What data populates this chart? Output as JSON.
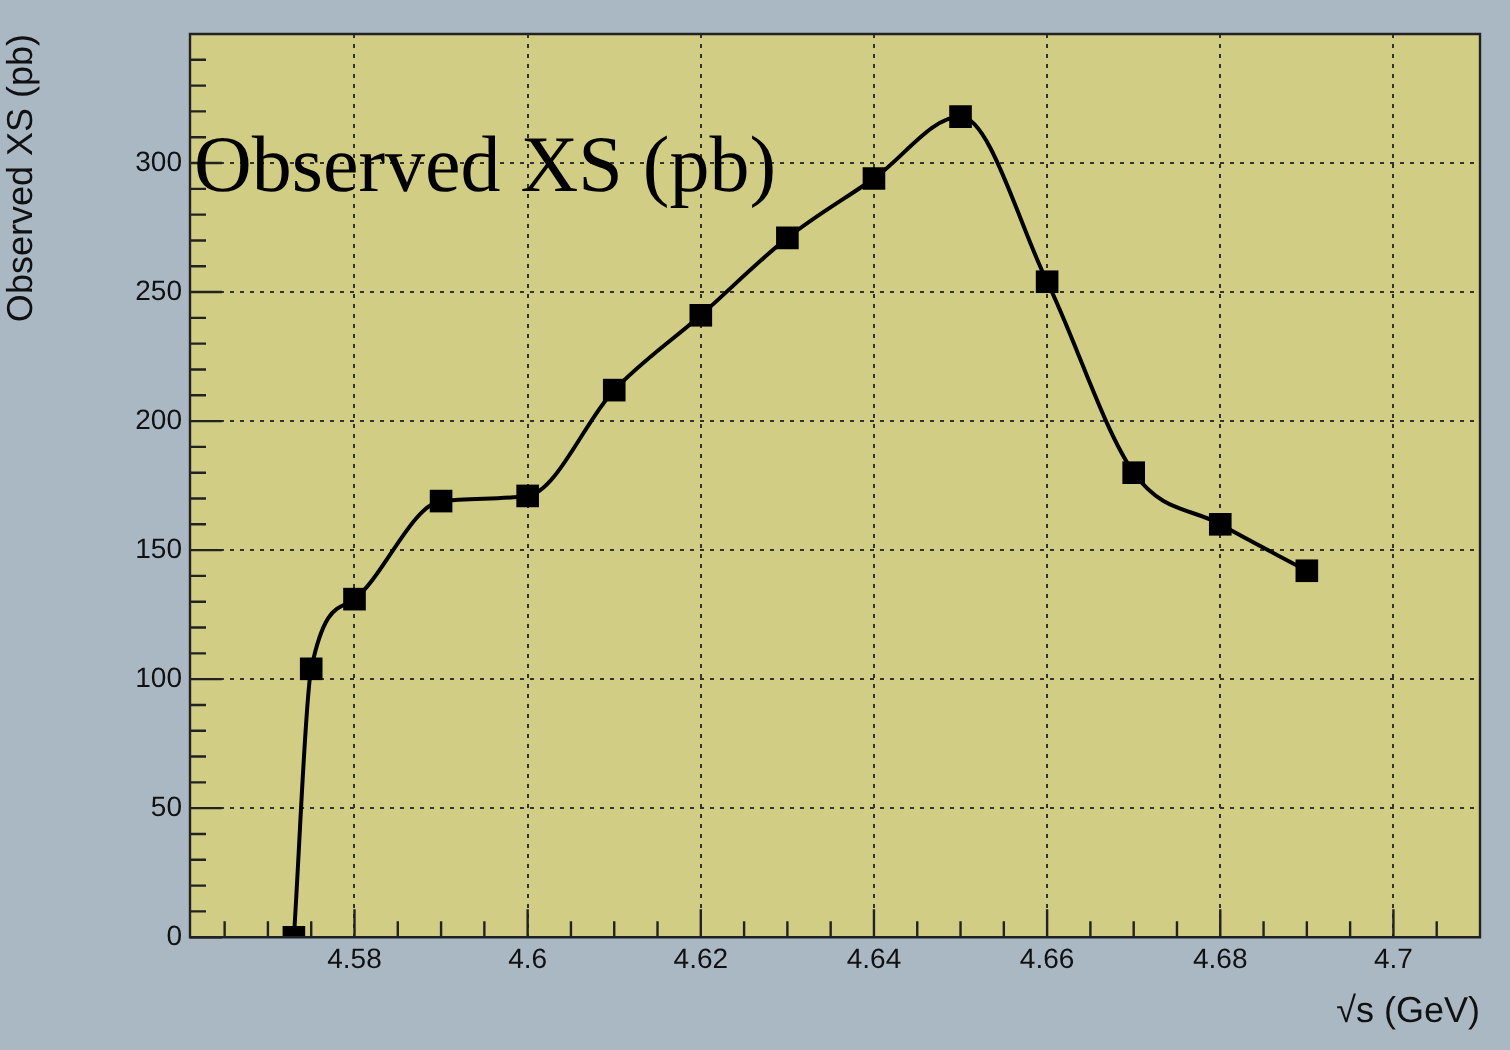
{
  "chart_data": {
    "type": "line",
    "title": "Observed XS (pb)",
    "xlabel": "√s (GeV)",
    "ylabel": "Observed XS (pb)",
    "x": [
      4.573,
      4.575,
      4.58,
      4.59,
      4.6,
      4.61,
      4.62,
      4.63,
      4.64,
      4.65,
      4.66,
      4.67,
      4.68,
      4.69
    ],
    "series": [
      {
        "color": "#000000",
        "values": [
          0,
          104,
          131,
          169,
          171,
          212,
          241,
          271,
          294,
          318,
          254,
          180,
          160,
          142
        ]
      }
    ],
    "xlim": [
      4.561,
      4.71
    ],
    "xticks": [
      {
        "value": 4.565,
        "label": null
      },
      {
        "value": 4.57,
        "label": null
      },
      {
        "value": 4.575,
        "label": null
      },
      {
        "value": 4.58,
        "label": "4.58"
      },
      {
        "value": 4.585,
        "label": null
      },
      {
        "value": 4.59,
        "label": null
      },
      {
        "value": 4.595,
        "label": null
      },
      {
        "value": 4.6,
        "label": "4.6"
      },
      {
        "value": 4.605,
        "label": null
      },
      {
        "value": 4.61,
        "label": null
      },
      {
        "value": 4.615,
        "label": null
      },
      {
        "value": 4.62,
        "label": "4.62"
      },
      {
        "value": 4.625,
        "label": null
      },
      {
        "value": 4.63,
        "label": null
      },
      {
        "value": 4.635,
        "label": null
      },
      {
        "value": 4.64,
        "label": "4.64"
      },
      {
        "value": 4.645,
        "label": null
      },
      {
        "value": 4.65,
        "label": null
      },
      {
        "value": 4.655,
        "label": null
      },
      {
        "value": 4.66,
        "label": "4.66"
      },
      {
        "value": 4.665,
        "label": null
      },
      {
        "value": 4.67,
        "label": null
      },
      {
        "value": 4.675,
        "label": null
      },
      {
        "value": 4.68,
        "label": "4.68"
      },
      {
        "value": 4.685,
        "label": null
      },
      {
        "value": 4.69,
        "label": null
      },
      {
        "value": 4.695,
        "label": null
      },
      {
        "value": 4.7,
        "label": "4.7"
      },
      {
        "value": 4.705,
        "label": null
      }
    ],
    "ylim": [
      0,
      350
    ],
    "yticks": [
      0,
      {
        "value": 10,
        "label": null
      },
      {
        "value": 20,
        "label": null
      },
      {
        "value": 30,
        "label": null
      },
      {
        "value": 40,
        "label": null
      },
      50,
      {
        "value": 60,
        "label": null
      },
      {
        "value": 70,
        "label": null
      },
      {
        "value": 80,
        "label": null
      },
      {
        "value": 90,
        "label": null
      },
      100,
      {
        "value": 110,
        "label": null
      },
      {
        "value": 120,
        "label": null
      },
      {
        "value": 130,
        "label": null
      },
      {
        "value": 140,
        "label": null
      },
      150,
      {
        "value": 160,
        "label": null
      },
      {
        "value": 170,
        "label": null
      },
      {
        "value": 180,
        "label": null
      },
      {
        "value": 190,
        "label": null
      },
      200,
      {
        "value": 210,
        "label": null
      },
      {
        "value": 220,
        "label": null
      },
      {
        "value": 230,
        "label": null
      },
      {
        "value": 240,
        "label": null
      },
      250,
      {
        "value": 260,
        "label": null
      },
      {
        "value": 270,
        "label": null
      },
      {
        "value": 280,
        "label": null
      },
      {
        "value": 290,
        "label": null
      },
      300,
      {
        "value": 310,
        "label": null
      },
      {
        "value": 320,
        "label": null
      },
      {
        "value": 330,
        "label": null
      },
      {
        "value": 340,
        "label": null
      }
    ],
    "grid": true,
    "marker": "square",
    "line_style": "solid",
    "legend": false
  }
}
